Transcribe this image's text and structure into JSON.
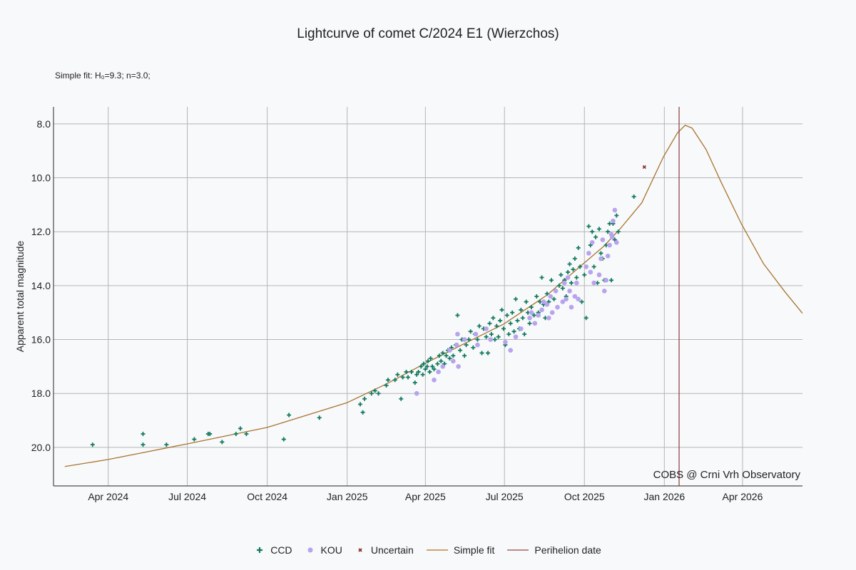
{
  "chart_data": {
    "type": "scatter",
    "title": "Lightcurve of comet C/2024 E1 (Wierzchos)",
    "subtitle": "Simple fit: H₀=9.3; n=3.0;",
    "xlabel": "",
    "ylabel": "Apparent total magnitude",
    "x_units": "days since 2025-01-01",
    "xlim": [
      -338,
      524
    ],
    "ylim": [
      21.43,
      7.37
    ],
    "y_inverted": true,
    "grid": true,
    "legend_placement": "bottom",
    "annotation": "COBS @ Crni Vrh Observatory",
    "x_ticks": [
      {
        "value": -275,
        "label": "Apr 2024"
      },
      {
        "value": -184,
        "label": "Jul 2024"
      },
      {
        "value": -92,
        "label": "Oct 2024"
      },
      {
        "value": 0,
        "label": "Jan 2025"
      },
      {
        "value": 90,
        "label": "Apr 2025"
      },
      {
        "value": 181,
        "label": "Jul 2025"
      },
      {
        "value": 273,
        "label": "Oct 2025"
      },
      {
        "value": 365,
        "label": "Jan 2026"
      },
      {
        "value": 455,
        "label": "Apr 2026"
      }
    ],
    "y_ticks": [
      {
        "value": 8,
        "label": "8.0"
      },
      {
        "value": 10,
        "label": "10.0"
      },
      {
        "value": 12,
        "label": "12.0"
      },
      {
        "value": 14,
        "label": "14.0"
      },
      {
        "value": 16,
        "label": "16.0"
      },
      {
        "value": 18,
        "label": "18.0"
      },
      {
        "value": 20,
        "label": "20.0"
      }
    ],
    "series": [
      {
        "name": "CCD",
        "kind": "marker-plus",
        "color": "#127a5f",
        "points": [
          [
            -293,
            19.9
          ],
          [
            -235,
            19.5
          ],
          [
            -235,
            19.9
          ],
          [
            -208,
            19.9
          ],
          [
            -176,
            19.7
          ],
          [
            -160,
            19.5
          ],
          [
            -158,
            19.5
          ],
          [
            -144,
            19.8
          ],
          [
            -128,
            19.5
          ],
          [
            -123,
            19.3
          ],
          [
            -116,
            19.5
          ],
          [
            -73,
            19.7
          ],
          [
            -67,
            18.8
          ],
          [
            -32,
            18.9
          ],
          [
            15,
            18.4
          ],
          [
            18,
            18.7
          ],
          [
            20,
            18.2
          ],
          [
            28,
            18.0
          ],
          [
            32,
            17.9
          ],
          [
            36,
            18.0
          ],
          [
            45,
            17.7
          ],
          [
            47,
            17.5
          ],
          [
            55,
            17.5
          ],
          [
            58,
            17.3
          ],
          [
            62,
            18.2
          ],
          [
            64,
            17.4
          ],
          [
            68,
            17.2
          ],
          [
            70,
            17.4
          ],
          [
            74,
            17.2
          ],
          [
            78,
            17.6
          ],
          [
            80,
            17.3
          ],
          [
            82,
            17.2
          ],
          [
            85,
            17.0
          ],
          [
            87,
            17.3
          ],
          [
            88,
            16.9
          ],
          [
            90,
            17.1
          ],
          [
            92,
            17.0
          ],
          [
            93,
            16.8
          ],
          [
            95,
            17.2
          ],
          [
            96,
            16.7
          ],
          [
            98,
            17.0
          ],
          [
            100,
            17.1
          ],
          [
            104,
            16.9
          ],
          [
            106,
            16.6
          ],
          [
            108,
            16.8
          ],
          [
            110,
            16.5
          ],
          [
            112,
            16.9
          ],
          [
            114,
            16.6
          ],
          [
            116,
            16.4
          ],
          [
            118,
            16.7
          ],
          [
            120,
            16.3
          ],
          [
            122,
            16.6
          ],
          [
            125,
            16.2
          ],
          [
            127,
            15.1
          ],
          [
            130,
            16.4
          ],
          [
            132,
            16.0
          ],
          [
            135,
            16.6
          ],
          [
            137,
            16.2
          ],
          [
            140,
            16.0
          ],
          [
            142,
            15.7
          ],
          [
            145,
            16.3
          ],
          [
            147,
            15.8
          ],
          [
            150,
            16.0
          ],
          [
            152,
            15.5
          ],
          [
            155,
            16.5
          ],
          [
            157,
            15.6
          ],
          [
            160,
            15.9
          ],
          [
            162,
            16.5
          ],
          [
            164,
            15.4
          ],
          [
            166,
            15.8
          ],
          [
            168,
            15.2
          ],
          [
            170,
            16.0
          ],
          [
            172,
            15.5
          ],
          [
            174,
            15.9
          ],
          [
            176,
            15.3
          ],
          [
            178,
            14.9
          ],
          [
            180,
            15.6
          ],
          [
            182,
            16.2
          ],
          [
            184,
            15.1
          ],
          [
            186,
            15.8
          ],
          [
            188,
            15.4
          ],
          [
            190,
            15.0
          ],
          [
            192,
            15.7
          ],
          [
            194,
            14.5
          ],
          [
            196,
            15.3
          ],
          [
            198,
            15.6
          ],
          [
            200,
            14.9
          ],
          [
            202,
            15.2
          ],
          [
            204,
            15.8
          ],
          [
            206,
            14.6
          ],
          [
            208,
            15.0
          ],
          [
            210,
            15.4
          ],
          [
            212,
            14.8
          ],
          [
            215,
            15.1
          ],
          [
            218,
            14.4
          ],
          [
            220,
            15.0
          ],
          [
            222,
            14.6
          ],
          [
            224,
            13.7
          ],
          [
            226,
            14.7
          ],
          [
            228,
            15.2
          ],
          [
            230,
            14.3
          ],
          [
            232,
            14.6
          ],
          [
            235,
            13.8
          ],
          [
            238,
            14.5
          ],
          [
            240,
            14.2
          ],
          [
            242,
            14.8
          ],
          [
            244,
            14.0
          ],
          [
            246,
            13.6
          ],
          [
            248,
            14.1
          ],
          [
            250,
            13.8
          ],
          [
            252,
            14.4
          ],
          [
            254,
            13.5
          ],
          [
            256,
            13.2
          ],
          [
            258,
            13.9
          ],
          [
            260,
            13.4
          ],
          [
            262,
            13.0
          ],
          [
            264,
            13.7
          ],
          [
            266,
            12.6
          ],
          [
            268,
            13.3
          ],
          [
            270,
            14.6
          ],
          [
            273,
            13.6
          ],
          [
            275,
            15.2
          ],
          [
            278,
            11.8
          ],
          [
            280,
            12.5
          ],
          [
            282,
            12.0
          ],
          [
            284,
            13.3
          ],
          [
            286,
            12.2
          ],
          [
            288,
            13.9
          ],
          [
            290,
            11.9
          ],
          [
            292,
            12.8
          ],
          [
            294,
            13.0
          ],
          [
            296,
            13.8
          ],
          [
            298,
            12.5
          ],
          [
            300,
            12.0
          ],
          [
            302,
            11.7
          ],
          [
            304,
            13.8
          ],
          [
            306,
            11.7
          ],
          [
            308,
            12.3
          ],
          [
            310,
            11.4
          ],
          [
            312,
            12.0
          ],
          [
            330,
            10.7
          ]
        ]
      },
      {
        "name": "KOU",
        "kind": "marker-dot",
        "color": "#b7a3ee",
        "points": [
          [
            80,
            18.0
          ],
          [
            100,
            17.5
          ],
          [
            105,
            17.2
          ],
          [
            110,
            17.0
          ],
          [
            118,
            16.4
          ],
          [
            122,
            16.8
          ],
          [
            126,
            16.2
          ],
          [
            127,
            15.8
          ],
          [
            128,
            17.0
          ],
          [
            135,
            16.0
          ],
          [
            148,
            15.8
          ],
          [
            150,
            16.2
          ],
          [
            160,
            15.6
          ],
          [
            165,
            16.0
          ],
          [
            182,
            16.1
          ],
          [
            188,
            16.4
          ],
          [
            194,
            15.9
          ],
          [
            200,
            15.6
          ],
          [
            210,
            15.2
          ],
          [
            212,
            15.0
          ],
          [
            216,
            15.4
          ],
          [
            220,
            15.1
          ],
          [
            224,
            14.9
          ],
          [
            226,
            14.6
          ],
          [
            230,
            14.7
          ],
          [
            232,
            15.2
          ],
          [
            234,
            14.4
          ],
          [
            236,
            15.0
          ],
          [
            240,
            14.2
          ],
          [
            242,
            14.8
          ],
          [
            248,
            14.6
          ],
          [
            250,
            13.9
          ],
          [
            252,
            14.5
          ],
          [
            254,
            13.7
          ],
          [
            256,
            14.2
          ],
          [
            258,
            14.8
          ],
          [
            262,
            14.4
          ],
          [
            264,
            13.9
          ],
          [
            266,
            14.5
          ],
          [
            275,
            13.3
          ],
          [
            278,
            12.8
          ],
          [
            280,
            13.5
          ],
          [
            282,
            12.4
          ],
          [
            284,
            13.9
          ],
          [
            290,
            13.6
          ],
          [
            292,
            13.0
          ],
          [
            294,
            12.3
          ],
          [
            296,
            14.2
          ],
          [
            298,
            13.8
          ],
          [
            300,
            12.9
          ],
          [
            302,
            12.5
          ],
          [
            304,
            12.1
          ],
          [
            305,
            12.2
          ],
          [
            306,
            11.6
          ],
          [
            308,
            11.2
          ],
          [
            310,
            12.4
          ]
        ]
      },
      {
        "name": "Uncertain",
        "kind": "marker-x",
        "color": "#8b2a2a",
        "points": [
          [
            342,
            9.6
          ]
        ]
      },
      {
        "name": "Simple fit",
        "kind": "line",
        "color": "#a8742e",
        "points": [
          [
            -325,
            20.71
          ],
          [
            -275,
            20.45
          ],
          [
            -184,
            19.87
          ],
          [
            -92,
            19.26
          ],
          [
            0,
            18.34
          ],
          [
            45,
            17.65
          ],
          [
            90,
            16.88
          ],
          [
            135,
            16.15
          ],
          [
            180,
            15.43
          ],
          [
            230,
            14.35
          ],
          [
            272,
            13.18
          ],
          [
            295,
            12.55
          ],
          [
            315,
            11.86
          ],
          [
            339,
            10.93
          ],
          [
            364,
            9.22
          ],
          [
            380,
            8.34
          ],
          [
            389,
            8.05
          ],
          [
            397,
            8.16
          ],
          [
            413,
            8.95
          ],
          [
            430,
            10.14
          ],
          [
            454,
            11.73
          ],
          [
            479,
            13.18
          ],
          [
            504,
            14.24
          ],
          [
            524,
            15.03
          ]
        ]
      },
      {
        "name": "Perihelion date",
        "kind": "vline",
        "color": "#8b3a3a",
        "x": 382
      }
    ]
  }
}
